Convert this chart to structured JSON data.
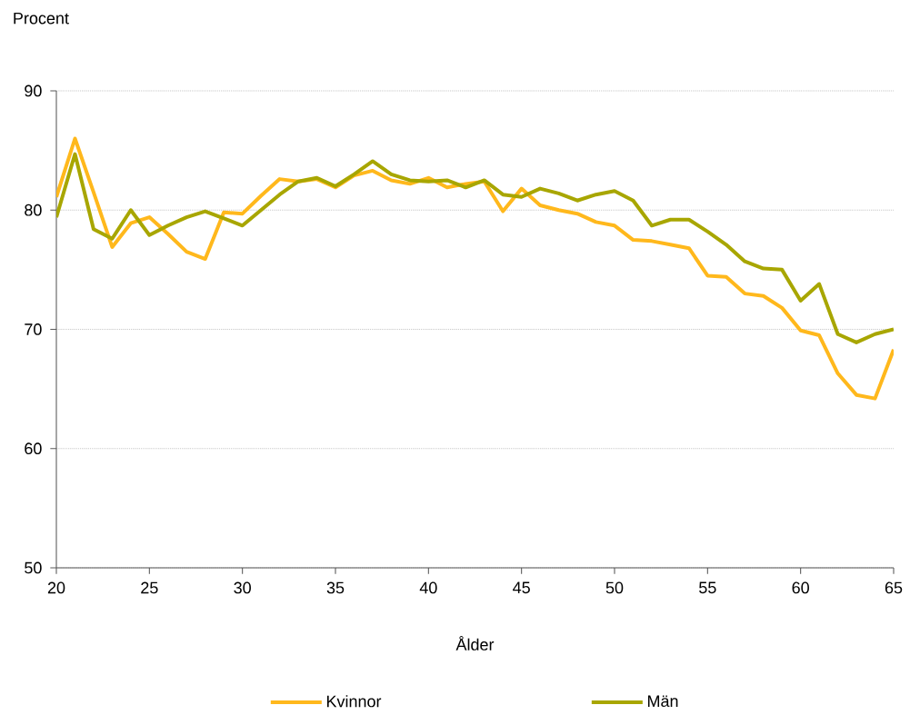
{
  "chart_data": {
    "type": "line",
    "xlabel": "Ålder",
    "ylabel": "Procent",
    "x": [
      20,
      21,
      22,
      23,
      24,
      25,
      26,
      27,
      28,
      29,
      30,
      31,
      32,
      33,
      34,
      35,
      36,
      37,
      38,
      39,
      40,
      41,
      42,
      43,
      44,
      45,
      46,
      47,
      48,
      49,
      50,
      51,
      52,
      53,
      54,
      55,
      56,
      57,
      58,
      59,
      60,
      61,
      62,
      63,
      64,
      65
    ],
    "series": [
      {
        "name": "Kvinnor",
        "color": "#ffb81c",
        "values": [
          81.1,
          86.0,
          81.5,
          76.9,
          78.9,
          79.4,
          78.0,
          76.5,
          75.9,
          79.8,
          79.7,
          81.2,
          82.6,
          82.4,
          82.6,
          81.9,
          82.9,
          83.3,
          82.5,
          82.2,
          82.7,
          81.9,
          82.2,
          82.4,
          79.9,
          81.8,
          80.4,
          80.0,
          79.7,
          79.0,
          78.7,
          77.5,
          77.4,
          77.1,
          76.8,
          74.5,
          74.4,
          73.0,
          72.8,
          71.8,
          69.9,
          69.5,
          66.3,
          64.5,
          64.2,
          68.3
        ]
      },
      {
        "name": "Män",
        "color": "#a8a600",
        "values": [
          79.4,
          84.7,
          78.4,
          77.6,
          80.0,
          77.9,
          78.7,
          79.4,
          79.9,
          79.3,
          78.7,
          80.0,
          81.3,
          82.4,
          82.7,
          82.0,
          83.0,
          84.1,
          83.0,
          82.5,
          82.4,
          82.5,
          81.9,
          82.5,
          81.3,
          81.1,
          81.8,
          81.4,
          80.8,
          81.3,
          81.6,
          80.8,
          78.7,
          79.2,
          79.2,
          78.2,
          77.1,
          75.7,
          75.1,
          75.0,
          72.4,
          73.8,
          69.6,
          68.9,
          69.6,
          70.0
        ]
      }
    ],
    "xlim": [
      20,
      65
    ],
    "xticks": [
      20,
      25,
      30,
      35,
      40,
      45,
      50,
      55,
      60,
      65
    ],
    "ylim": [
      50,
      90
    ],
    "yticks": [
      50,
      60,
      70,
      80,
      90
    ],
    "grid": "y",
    "legend": "bottom",
    "line_style": "solid"
  }
}
